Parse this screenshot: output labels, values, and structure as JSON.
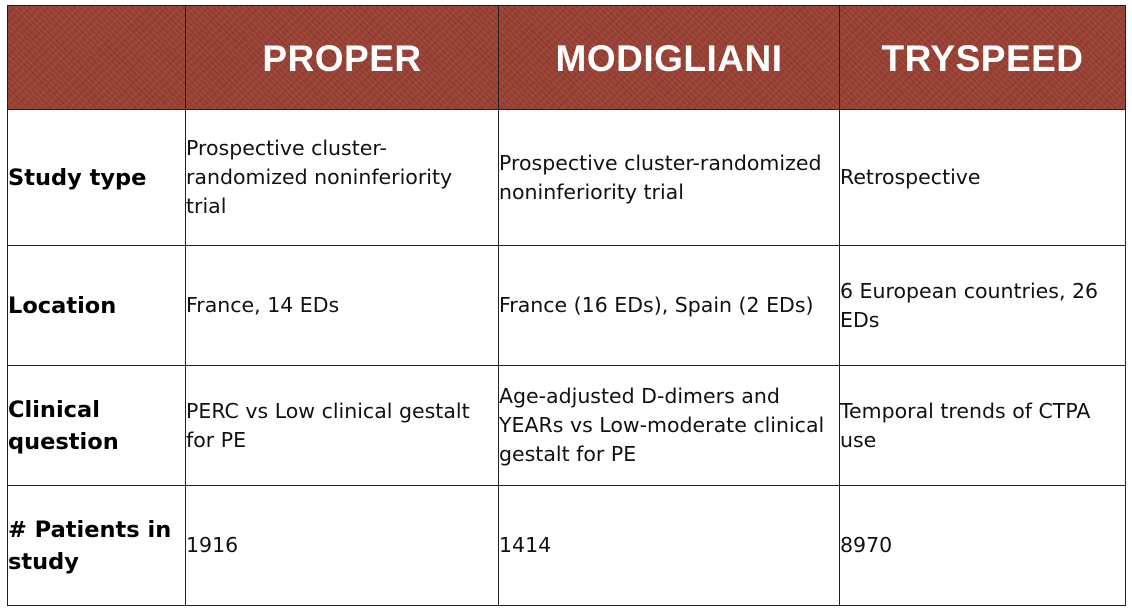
{
  "table": {
    "columns": [
      "",
      "PROPER",
      "MODIGLIANI",
      "TRYSPEED"
    ],
    "rows": [
      {
        "label": "Study type",
        "cells": [
          "Prospective cluster-randomized noninferiority trial",
          "Prospective cluster-randomized noninferiority trial",
          "Retrospective"
        ]
      },
      {
        "label": "Location",
        "cells": [
          "France, 14 EDs",
          "France (16 EDs), Spain (2 EDs)",
          "6 European countries, 26 EDs"
        ]
      },
      {
        "label": "Clinical question",
        "cells": [
          "PERC vs Low clinical gestalt for PE",
          "Age-adjusted D-dimers and YEARs vs Low-moderate clinical gestalt for PE",
          "Temporal trends of CTPA use"
        ]
      },
      {
        "label": "# Patients in study",
        "cells": [
          "1916",
          "1414",
          "8970"
        ]
      }
    ]
  },
  "colors": {
    "header_background": "#9a3f33",
    "header_text": "#ffffff",
    "border": "#222222"
  }
}
